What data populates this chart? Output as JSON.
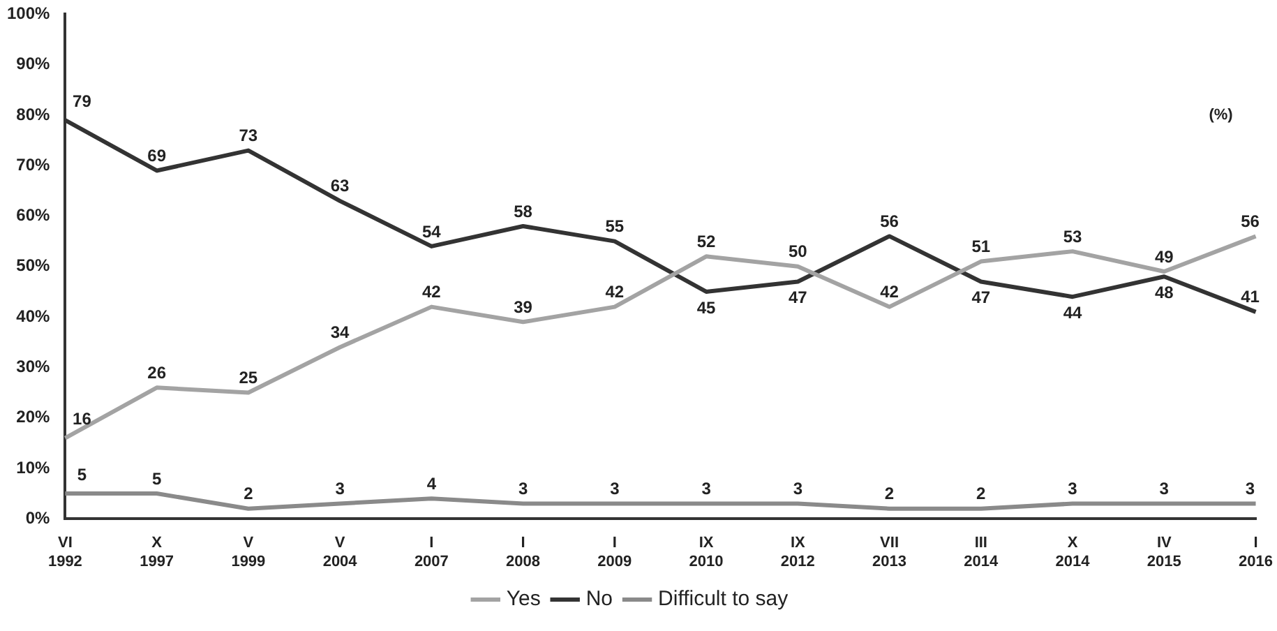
{
  "chart_data": {
    "type": "line",
    "categories": [
      "VI 1992",
      "X 1997",
      "V 1999",
      "V 2004",
      "I 2007",
      "I 2008",
      "I 2009",
      "IX 2010",
      "IX 2012",
      "VII 2013",
      "III 2014",
      "X 2014",
      "IV 2015",
      "I 2016"
    ],
    "series": [
      {
        "name": "Yes",
        "color": "#a3a3a3",
        "values": [
          16,
          26,
          25,
          34,
          42,
          39,
          42,
          52,
          50,
          42,
          51,
          53,
          49,
          56
        ]
      },
      {
        "name": "No",
        "color": "#333333",
        "values": [
          79,
          69,
          73,
          63,
          54,
          58,
          55,
          45,
          47,
          56,
          47,
          44,
          48,
          41
        ]
      },
      {
        "name": "Difficult to say",
        "color": "#8a8a8a",
        "values": [
          5,
          5,
          2,
          3,
          4,
          3,
          3,
          3,
          3,
          2,
          2,
          3,
          3,
          3
        ]
      }
    ],
    "ylim": [
      0,
      100
    ],
    "yticks": [
      {
        "value": 0,
        "label": "0%"
      },
      {
        "value": 10,
        "label": "10%"
      },
      {
        "value": 20,
        "label": "20%"
      },
      {
        "value": 30,
        "label": "30%"
      },
      {
        "value": 40,
        "label": "40%"
      },
      {
        "value": 50,
        "label": "50%"
      },
      {
        "value": 60,
        "label": "60%"
      },
      {
        "value": 70,
        "label": "70%"
      },
      {
        "value": 80,
        "label": "80%"
      },
      {
        "value": 90,
        "label": "90%"
      },
      {
        "value": 100,
        "label": "100%"
      }
    ],
    "grid": false,
    "legend": "bottom",
    "marker": "none",
    "line_style": "solid",
    "data_labels": true,
    "annotations": [
      "(%)"
    ]
  }
}
